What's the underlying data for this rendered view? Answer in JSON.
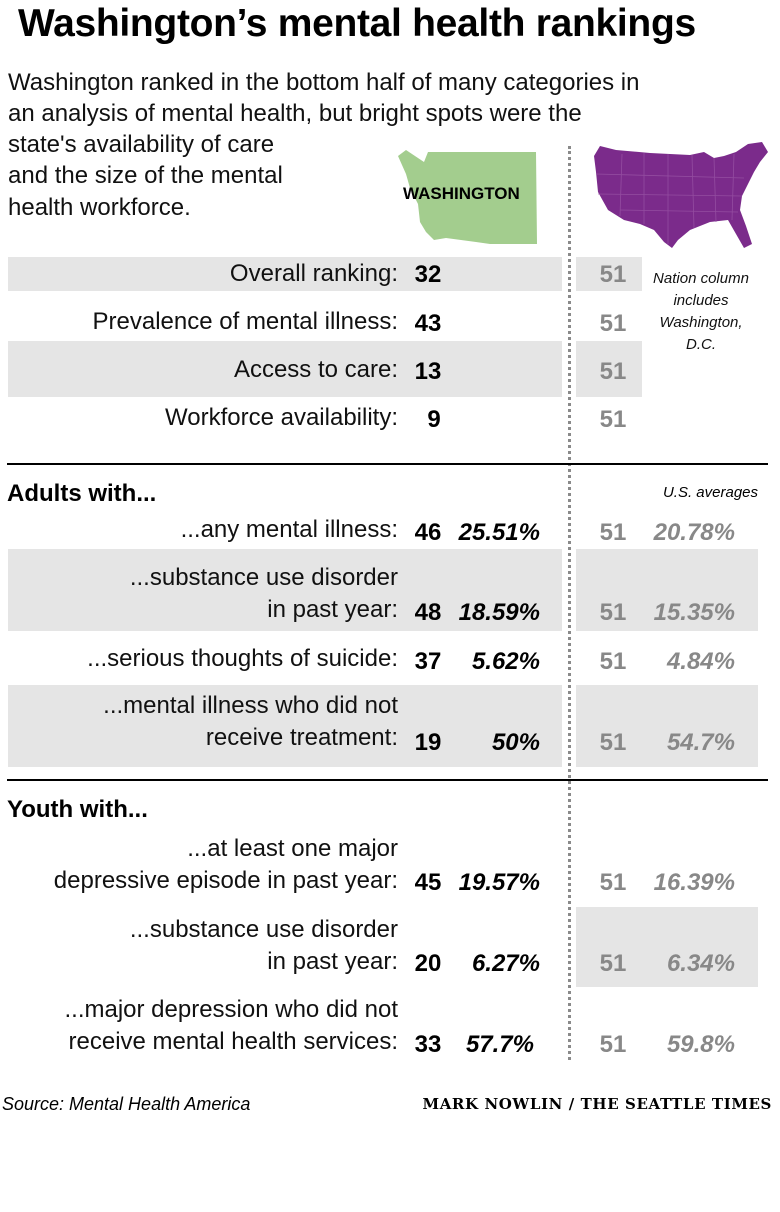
{
  "title": "Washington’s mental health rankings",
  "intro": {
    "lines": [
      "Washington ranked in the bottom half of many categories in",
      "an analysis of mental health, but bright spots were the",
      "state's availability of care",
      "and the size of the mental",
      "health workforce."
    ]
  },
  "maps": {
    "washington_label": "WASHINGTON",
    "washington_color": "#a3cd8e",
    "nation_color": "#7b2b8b"
  },
  "nation_note": [
    "Nation column",
    "includes",
    "Washington,",
    "D.C."
  ],
  "us_averages_label": "U.S. averages",
  "overview_rows": [
    {
      "label": "Overall ranking:",
      "wa_rank": "32",
      "us_rank": "51"
    },
    {
      "label": "Prevalence of mental illness:",
      "wa_rank": "43",
      "us_rank": "51"
    },
    {
      "label": "Access to care:",
      "wa_rank": "13",
      "us_rank": "51"
    },
    {
      "label": "Workforce availability:",
      "wa_rank": "9",
      "us_rank": "51"
    }
  ],
  "adults": {
    "heading": "Adults with...",
    "rows": [
      {
        "label_lines": [
          "...any mental illness:"
        ],
        "wa_rank": "46",
        "wa_pct": "25.51%",
        "us_rank": "51",
        "us_pct": "20.78%"
      },
      {
        "label_lines": [
          "...substance use disorder",
          "in past year:"
        ],
        "wa_rank": "48",
        "wa_pct": "18.59%",
        "us_rank": "51",
        "us_pct": "15.35%"
      },
      {
        "label_lines": [
          "...serious thoughts of suicide:"
        ],
        "wa_rank": "37",
        "wa_pct": "5.62%",
        "us_rank": "51",
        "us_pct": "4.84%"
      },
      {
        "label_lines": [
          "...mental illness who did not",
          "receive treatment:"
        ],
        "wa_rank": "19",
        "wa_pct": "50%",
        "us_rank": "51",
        "us_pct": "54.7%"
      }
    ]
  },
  "youth": {
    "heading": "Youth with...",
    "rows": [
      {
        "label_lines": [
          "...at least one major",
          "depressive episode in past year:"
        ],
        "wa_rank": "45",
        "wa_pct": "19.57%",
        "us_rank": "51",
        "us_pct": "16.39%"
      },
      {
        "label_lines": [
          "...substance use disorder",
          "in past year:"
        ],
        "wa_rank": "20",
        "wa_pct": "6.27%",
        "us_rank": "51",
        "us_pct": "6.34%"
      },
      {
        "label_lines": [
          "...major depression who did not",
          "receive mental health services:"
        ],
        "wa_rank": "33",
        "wa_pct": "57.7%",
        "us_rank": "51",
        "us_pct": "59.8%"
      }
    ]
  },
  "source": "Source: Mental Health America",
  "credit": "MARK NOWLIN / THE SEATTLE TIMES"
}
